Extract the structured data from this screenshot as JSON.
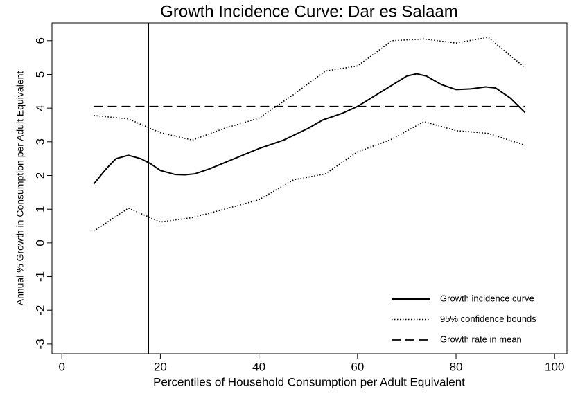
{
  "chart_data": {
    "type": "line",
    "title": "Growth Incidence Curve: Dar es Salaam",
    "x_label": "Percentiles of Household Consumption per Adult Equivalent",
    "y_label": "Annual % Growth in Consumption per Adult Equivalent",
    "xlim": [
      -2,
      102.5
    ],
    "ylim": [
      -3.29,
      6.53
    ],
    "xticks": [
      0,
      20,
      40,
      60,
      80,
      100
    ],
    "yticks": [
      -3,
      -2,
      -1,
      0,
      1,
      2,
      3,
      4,
      5,
      6
    ],
    "vline": 17.6,
    "legend": "lower right",
    "series": [
      {
        "name": "Growth incidence curve",
        "color": "#000000",
        "style": "solid",
        "x": [
          6.5,
          9,
          11,
          13.5,
          16,
          18,
          20,
          23,
          25,
          27,
          30,
          35,
          40,
          45,
          50,
          53,
          57,
          60,
          65,
          70,
          72,
          74,
          77,
          80,
          83,
          86,
          88,
          91,
          94
        ],
        "values": [
          1.75,
          2.2,
          2.5,
          2.6,
          2.5,
          2.35,
          2.15,
          2.03,
          2.02,
          2.05,
          2.2,
          2.5,
          2.8,
          3.05,
          3.4,
          3.65,
          3.85,
          4.05,
          4.5,
          4.95,
          5.02,
          4.95,
          4.7,
          4.55,
          4.57,
          4.63,
          4.6,
          4.3,
          3.87
        ]
      },
      {
        "name": "95% confidence bounds",
        "color": "#000000",
        "style": "dotted",
        "x": [
          6.5,
          13.5,
          20,
          26.5,
          33,
          40,
          47,
          53.5,
          60,
          67,
          73.5,
          80,
          86.5,
          94
        ],
        "values": [
          3.78,
          3.68,
          3.27,
          3.05,
          3.4,
          3.7,
          4.4,
          5.1,
          5.25,
          6.0,
          6.05,
          5.93,
          6.1,
          5.2
        ]
      },
      {
        "color": "#000000",
        "style": "dotted",
        "x": [
          6.5,
          13.5,
          20,
          26.5,
          33,
          40,
          47,
          53.5,
          60,
          67,
          73.5,
          80,
          86.5,
          94
        ],
        "values": [
          0.35,
          1.03,
          0.62,
          0.75,
          1.0,
          1.28,
          1.87,
          2.05,
          2.7,
          3.08,
          3.6,
          3.33,
          3.25,
          2.9
        ]
      },
      {
        "name": "Growth rate in mean",
        "color": "#000000",
        "style": "dashed",
        "x": [
          6.5,
          94
        ],
        "values": [
          4.05,
          4.05
        ]
      }
    ]
  }
}
